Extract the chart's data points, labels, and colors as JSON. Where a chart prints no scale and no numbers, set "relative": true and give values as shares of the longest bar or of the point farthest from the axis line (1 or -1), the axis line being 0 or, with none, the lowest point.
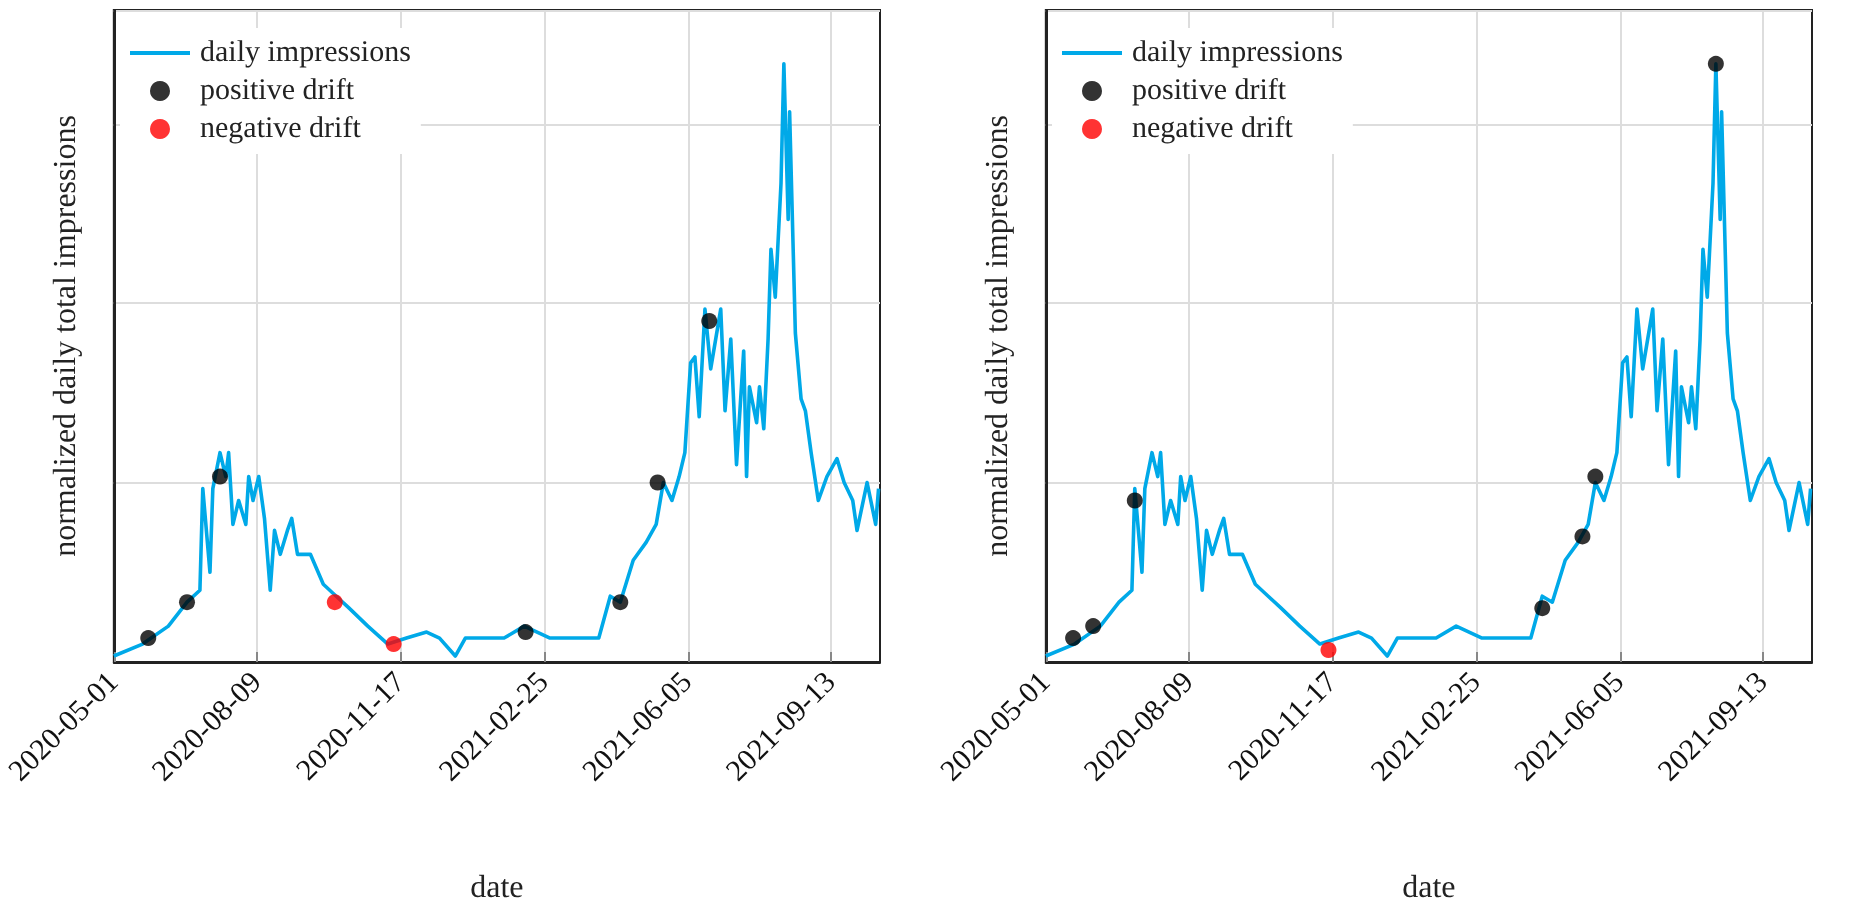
{
  "chart_data": [
    {
      "type": "line",
      "relative": true,
      "xlabel": "date",
      "ylabel": "normalized daily total impressions",
      "xlim": [
        "2020-05-01",
        "2021-10-17"
      ],
      "xticks": [
        "2020-05-01",
        "2020-08-09",
        "2020-11-17",
        "2021-02-25",
        "2021-06-05",
        "2021-09-13"
      ],
      "grid": true,
      "legend": "top left",
      "marker": "none",
      "line_style": "solid",
      "series": [
        {
          "name": "daily impressions",
          "type": "line",
          "color": "#00a9e8",
          "x": [
            "2020-05-01",
            "2020-05-21",
            "2020-06-08",
            "2020-06-21",
            "2020-06-30",
            "2020-07-02",
            "2020-07-07",
            "2020-07-09",
            "2020-07-14",
            "2020-07-18",
            "2020-07-20",
            "2020-07-23",
            "2020-07-27",
            "2020-08-01",
            "2020-08-03",
            "2020-08-06",
            "2020-08-10",
            "2020-08-14",
            "2020-08-18",
            "2020-08-21",
            "2020-08-25",
            "2020-08-30",
            "2020-09-02",
            "2020-09-06",
            "2020-09-15",
            "2020-09-24",
            "2020-10-03",
            "2020-10-12",
            "2020-10-25",
            "2020-11-08",
            "2020-11-21",
            "2020-12-05",
            "2020-12-14",
            "2020-12-25",
            "2021-01-01",
            "2021-01-19",
            "2021-01-28",
            "2021-02-11",
            "2021-03-01",
            "2021-03-23",
            "2021-04-04",
            "2021-04-12",
            "2021-04-19",
            "2021-04-28",
            "2021-05-07",
            "2021-05-14",
            "2021-05-19",
            "2021-05-25",
            "2021-05-30",
            "2021-06-03",
            "2021-06-07",
            "2021-06-10",
            "2021-06-13",
            "2021-06-17",
            "2021-06-21",
            "2021-06-28",
            "2021-07-01",
            "2021-07-05",
            "2021-07-09",
            "2021-07-14",
            "2021-07-16",
            "2021-07-18",
            "2021-07-23",
            "2021-07-25",
            "2021-07-28",
            "2021-07-31",
            "2021-08-02",
            "2021-08-05",
            "2021-08-09",
            "2021-08-11",
            "2021-08-14",
            "2021-08-15",
            "2021-08-19",
            "2021-08-23",
            "2021-08-26",
            "2021-08-30",
            "2021-09-04",
            "2021-09-10",
            "2021-09-17",
            "2021-09-22",
            "2021-09-28",
            "2021-10-01",
            "2021-10-08",
            "2021-10-14",
            "2021-10-16"
          ],
          "values": [
            0.01,
            0.03,
            0.06,
            0.1,
            0.12,
            0.29,
            0.15,
            0.29,
            0.35,
            0.31,
            0.35,
            0.23,
            0.27,
            0.23,
            0.31,
            0.27,
            0.31,
            0.24,
            0.12,
            0.22,
            0.18,
            0.22,
            0.24,
            0.18,
            0.18,
            0.13,
            0.11,
            0.09,
            0.06,
            0.03,
            0.04,
            0.05,
            0.04,
            0.01,
            0.04,
            0.04,
            0.04,
            0.06,
            0.04,
            0.04,
            0.04,
            0.11,
            0.1,
            0.17,
            0.2,
            0.23,
            0.3,
            0.27,
            0.31,
            0.35,
            0.5,
            0.51,
            0.41,
            0.59,
            0.49,
            0.59,
            0.42,
            0.54,
            0.33,
            0.52,
            0.31,
            0.46,
            0.4,
            0.46,
            0.39,
            0.54,
            0.69,
            0.61,
            0.8,
            1.0,
            0.74,
            0.92,
            0.55,
            0.44,
            0.42,
            0.35,
            0.27,
            0.31,
            0.34,
            0.3,
            0.27,
            0.22,
            0.3,
            0.23,
            0.29
          ]
        },
        {
          "name": "positive drift",
          "type": "scatter",
          "color": "#000000",
          "marker": "circle",
          "x": [
            "2020-05-25",
            "2020-06-21",
            "2020-07-14",
            "2021-02-12",
            "2021-04-19",
            "2021-05-15",
            "2021-06-20"
          ],
          "values": [
            0.04,
            0.1,
            0.31,
            0.05,
            0.1,
            0.3,
            0.57
          ]
        },
        {
          "name": "negative drift",
          "type": "scatter",
          "color": "#ff0000",
          "marker": "circle",
          "x": [
            "2020-10-02",
            "2020-11-12"
          ],
          "values": [
            0.1,
            0.03
          ]
        }
      ]
    },
    {
      "type": "line",
      "relative": true,
      "xlabel": "date",
      "ylabel": "normalized daily total impressions",
      "xlim": [
        "2020-05-01",
        "2021-10-17"
      ],
      "xticks": [
        "2020-05-01",
        "2020-08-09",
        "2020-11-17",
        "2021-02-25",
        "2021-06-05",
        "2021-09-13"
      ],
      "grid": true,
      "legend": "top left",
      "marker": "none",
      "line_style": "solid",
      "series": [
        {
          "name": "daily impressions",
          "type": "line",
          "color": "#00a9e8",
          "x": [
            "2020-05-01",
            "2020-05-21",
            "2020-06-08",
            "2020-06-21",
            "2020-06-30",
            "2020-07-02",
            "2020-07-07",
            "2020-07-09",
            "2020-07-14",
            "2020-07-18",
            "2020-07-20",
            "2020-07-23",
            "2020-07-27",
            "2020-08-01",
            "2020-08-03",
            "2020-08-06",
            "2020-08-10",
            "2020-08-14",
            "2020-08-18",
            "2020-08-21",
            "2020-08-25",
            "2020-08-30",
            "2020-09-02",
            "2020-09-06",
            "2020-09-15",
            "2020-09-24",
            "2020-10-03",
            "2020-10-12",
            "2020-10-25",
            "2020-11-08",
            "2020-11-21",
            "2020-12-05",
            "2020-12-14",
            "2020-12-25",
            "2021-01-01",
            "2021-01-19",
            "2021-01-28",
            "2021-02-11",
            "2021-03-01",
            "2021-03-23",
            "2021-04-04",
            "2021-04-12",
            "2021-04-19",
            "2021-04-28",
            "2021-05-07",
            "2021-05-14",
            "2021-05-19",
            "2021-05-25",
            "2021-05-30",
            "2021-06-03",
            "2021-06-07",
            "2021-06-10",
            "2021-06-13",
            "2021-06-17",
            "2021-06-21",
            "2021-06-28",
            "2021-07-01",
            "2021-07-05",
            "2021-07-09",
            "2021-07-14",
            "2021-07-16",
            "2021-07-18",
            "2021-07-23",
            "2021-07-25",
            "2021-07-28",
            "2021-07-31",
            "2021-08-02",
            "2021-08-05",
            "2021-08-09",
            "2021-08-11",
            "2021-08-14",
            "2021-08-15",
            "2021-08-19",
            "2021-08-23",
            "2021-08-26",
            "2021-08-30",
            "2021-09-04",
            "2021-09-10",
            "2021-09-17",
            "2021-09-22",
            "2021-09-28",
            "2021-10-01",
            "2021-10-08",
            "2021-10-14",
            "2021-10-16"
          ],
          "values": [
            0.01,
            0.03,
            0.06,
            0.1,
            0.12,
            0.29,
            0.15,
            0.29,
            0.35,
            0.31,
            0.35,
            0.23,
            0.27,
            0.23,
            0.31,
            0.27,
            0.31,
            0.24,
            0.12,
            0.22,
            0.18,
            0.22,
            0.24,
            0.18,
            0.18,
            0.13,
            0.11,
            0.09,
            0.06,
            0.03,
            0.04,
            0.05,
            0.04,
            0.01,
            0.04,
            0.04,
            0.04,
            0.06,
            0.04,
            0.04,
            0.04,
            0.11,
            0.1,
            0.17,
            0.2,
            0.23,
            0.3,
            0.27,
            0.31,
            0.35,
            0.5,
            0.51,
            0.41,
            0.59,
            0.49,
            0.59,
            0.42,
            0.54,
            0.33,
            0.52,
            0.31,
            0.46,
            0.4,
            0.46,
            0.39,
            0.54,
            0.69,
            0.61,
            0.8,
            1.0,
            0.74,
            0.92,
            0.55,
            0.44,
            0.42,
            0.35,
            0.27,
            0.31,
            0.34,
            0.3,
            0.27,
            0.22,
            0.3,
            0.23,
            0.29
          ]
        },
        {
          "name": "positive drift",
          "type": "scatter",
          "color": "#000000",
          "marker": "circle",
          "x": [
            "2020-05-20",
            "2020-06-03",
            "2020-07-02",
            "2021-04-12",
            "2021-05-10",
            "2021-05-19",
            "2021-08-11"
          ],
          "values": [
            0.04,
            0.06,
            0.27,
            0.09,
            0.21,
            0.31,
            1.0
          ]
        },
        {
          "name": "negative drift",
          "type": "scatter",
          "color": "#ff0000",
          "marker": "circle",
          "x": [
            "2020-11-14"
          ],
          "values": [
            0.02
          ]
        }
      ]
    }
  ]
}
